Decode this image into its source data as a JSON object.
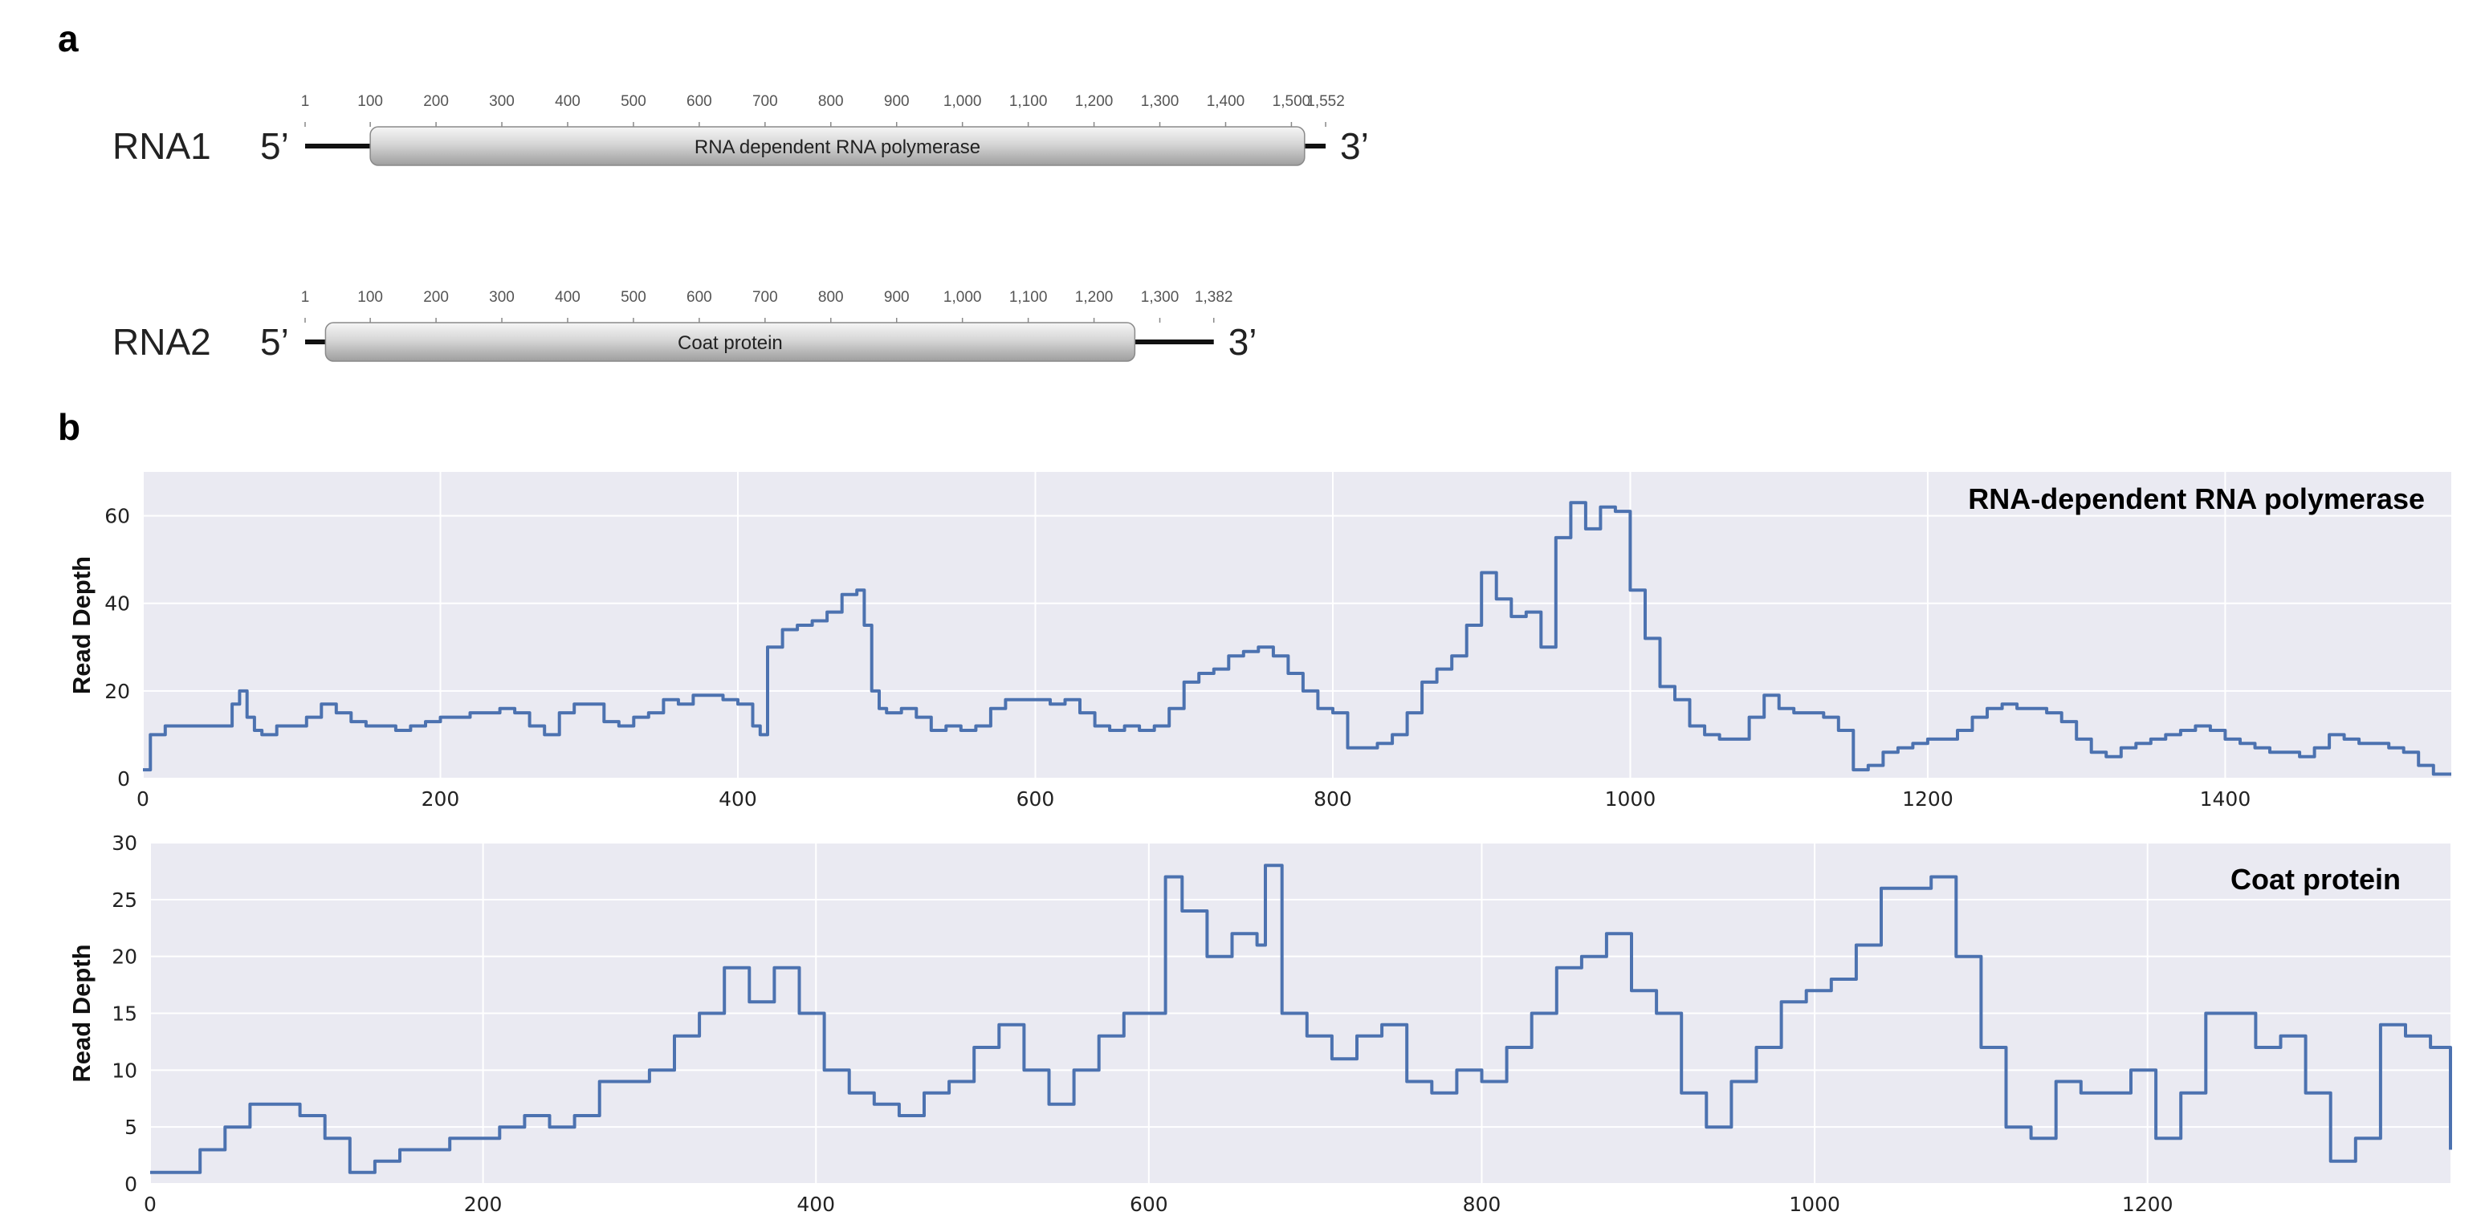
{
  "panel_a": {
    "letter": "a",
    "rows": [
      {
        "name": "RNA1",
        "five_prime": "5’",
        "three_prime": "3’",
        "length": 1552,
        "orf_start": 100,
        "orf_end": 1520,
        "gene_label": "RNA dependent RNA polymerase",
        "ruler_ticks": [
          "1",
          "100",
          "200",
          "300",
          "400",
          "500",
          "600",
          "700",
          "800",
          "900",
          "1,000",
          "1,100",
          "1,200",
          "1,300",
          "1,400",
          "1,500",
          "1,552"
        ],
        "ruler_values": [
          1,
          100,
          200,
          300,
          400,
          500,
          600,
          700,
          800,
          900,
          1000,
          1100,
          1200,
          1300,
          1400,
          1500,
          1552
        ]
      },
      {
        "name": "RNA2",
        "five_prime": "5’",
        "three_prime": "3’",
        "length": 1382,
        "orf_start": 32,
        "orf_end": 1262,
        "gene_label": "Coat protein",
        "ruler_ticks": [
          "1",
          "100",
          "200",
          "300",
          "400",
          "500",
          "600",
          "700",
          "800",
          "900",
          "1,000",
          "1,100",
          "1,200",
          "1,300",
          "1,382"
        ],
        "ruler_values": [
          1,
          100,
          200,
          300,
          400,
          500,
          600,
          700,
          800,
          900,
          1000,
          1100,
          1200,
          1300,
          1382
        ]
      }
    ]
  },
  "panel_b": {
    "letter": "b",
    "colors": {
      "line": "#4c72b0",
      "background": "#eaeaf2",
      "grid": "#ffffff"
    }
  },
  "chart_data": [
    {
      "type": "line",
      "title": "RNA-dependent RNA polymerase",
      "xlabel": "",
      "ylabel": "Read Depth",
      "xlim": [
        0,
        1552
      ],
      "ylim": [
        0,
        70
      ],
      "xticks": [
        0,
        200,
        400,
        600,
        800,
        1000,
        1200,
        1400
      ],
      "yticks": [
        0,
        20,
        40,
        60
      ],
      "grid": true,
      "x": [
        0,
        5,
        15,
        60,
        65,
        70,
        75,
        80,
        90,
        100,
        110,
        120,
        130,
        140,
        150,
        160,
        170,
        180,
        190,
        200,
        210,
        220,
        230,
        240,
        250,
        260,
        270,
        280,
        290,
        300,
        310,
        320,
        330,
        340,
        350,
        360,
        370,
        380,
        390,
        400,
        410,
        415,
        420,
        430,
        440,
        450,
        460,
        470,
        480,
        485,
        490,
        495,
        500,
        510,
        520,
        530,
        540,
        550,
        560,
        570,
        580,
        590,
        600,
        610,
        620,
        630,
        640,
        650,
        660,
        670,
        680,
        690,
        700,
        710,
        720,
        730,
        740,
        750,
        760,
        770,
        780,
        790,
        800,
        810,
        820,
        830,
        840,
        850,
        860,
        870,
        880,
        890,
        900,
        910,
        920,
        930,
        940,
        950,
        960,
        970,
        980,
        990,
        1000,
        1010,
        1020,
        1030,
        1040,
        1050,
        1060,
        1070,
        1080,
        1090,
        1100,
        1110,
        1120,
        1130,
        1140,
        1150,
        1160,
        1170,
        1180,
        1190,
        1200,
        1210,
        1220,
        1230,
        1240,
        1250,
        1260,
        1270,
        1280,
        1290,
        1300,
        1310,
        1320,
        1330,
        1340,
        1350,
        1360,
        1370,
        1380,
        1390,
        1400,
        1410,
        1420,
        1430,
        1440,
        1450,
        1460,
        1470,
        1480,
        1490,
        1500,
        1510,
        1520,
        1530,
        1540,
        1552
      ],
      "y": [
        2,
        10,
        12,
        17,
        20,
        14,
        11,
        10,
        12,
        12,
        14,
        17,
        15,
        13,
        12,
        12,
        11,
        12,
        13,
        14,
        14,
        15,
        15,
        16,
        15,
        12,
        10,
        15,
        17,
        17,
        13,
        12,
        14,
        15,
        18,
        17,
        19,
        19,
        18,
        17,
        12,
        10,
        30,
        34,
        35,
        36,
        38,
        42,
        43,
        35,
        20,
        16,
        15,
        16,
        14,
        11,
        12,
        11,
        12,
        16,
        18,
        18,
        18,
        17,
        18,
        15,
        12,
        11,
        12,
        11,
        12,
        16,
        22,
        24,
        25,
        28,
        29,
        30,
        28,
        24,
        20,
        16,
        15,
        7,
        7,
        8,
        10,
        15,
        22,
        25,
        28,
        35,
        47,
        41,
        37,
        38,
        30,
        55,
        63,
        57,
        62,
        61,
        43,
        32,
        21,
        18,
        12,
        10,
        9,
        9,
        14,
        19,
        16,
        15,
        15,
        14,
        11,
        2,
        3,
        6,
        7,
        8,
        9,
        9,
        11,
        14,
        16,
        17,
        16,
        16,
        15,
        13,
        9,
        6,
        5,
        7,
        8,
        9,
        10,
        11,
        12,
        11,
        9,
        8,
        7,
        6,
        6,
        5,
        7,
        10,
        9,
        8,
        8,
        7,
        6,
        3,
        1,
        1
      ]
    },
    {
      "type": "line",
      "title": "Coat protein",
      "xlabel": "",
      "ylabel": "Read Depth",
      "xlim": [
        0,
        1382
      ],
      "ylim": [
        0,
        30
      ],
      "xticks": [
        0,
        200,
        400,
        600,
        800,
        1000,
        1200
      ],
      "yticks": [
        0,
        5,
        10,
        15,
        20,
        25,
        30
      ],
      "grid": true,
      "x": [
        0,
        15,
        30,
        45,
        60,
        75,
        90,
        105,
        120,
        135,
        150,
        165,
        180,
        195,
        210,
        225,
        240,
        255,
        270,
        285,
        300,
        315,
        330,
        345,
        360,
        375,
        390,
        405,
        420,
        435,
        450,
        465,
        480,
        495,
        510,
        525,
        540,
        555,
        570,
        585,
        600,
        610,
        620,
        635,
        650,
        665,
        670,
        680,
        695,
        710,
        725,
        740,
        755,
        770,
        785,
        800,
        815,
        830,
        845,
        860,
        875,
        890,
        905,
        920,
        935,
        950,
        965,
        980,
        995,
        1010,
        1025,
        1040,
        1055,
        1070,
        1085,
        1100,
        1115,
        1130,
        1145,
        1160,
        1175,
        1190,
        1205,
        1220,
        1235,
        1250,
        1265,
        1280,
        1295,
        1310,
        1325,
        1340,
        1355,
        1370,
        1382
      ],
      "y": [
        1,
        1,
        3,
        5,
        7,
        7,
        6,
        4,
        1,
        2,
        3,
        3,
        4,
        4,
        5,
        6,
        5,
        6,
        9,
        9,
        10,
        13,
        15,
        19,
        16,
        19,
        15,
        10,
        8,
        7,
        6,
        8,
        9,
        12,
        14,
        10,
        7,
        10,
        13,
        15,
        15,
        27,
        24,
        20,
        22,
        21,
        28,
        15,
        13,
        11,
        13,
        14,
        9,
        8,
        10,
        9,
        12,
        15,
        19,
        20,
        22,
        17,
        15,
        8,
        5,
        9,
        12,
        16,
        17,
        18,
        21,
        26,
        26,
        27,
        20,
        12,
        5,
        4,
        9,
        8,
        8,
        10,
        4,
        8,
        15,
        15,
        12,
        13,
        8,
        2,
        4,
        14,
        13,
        12,
        3
      ]
    }
  ]
}
